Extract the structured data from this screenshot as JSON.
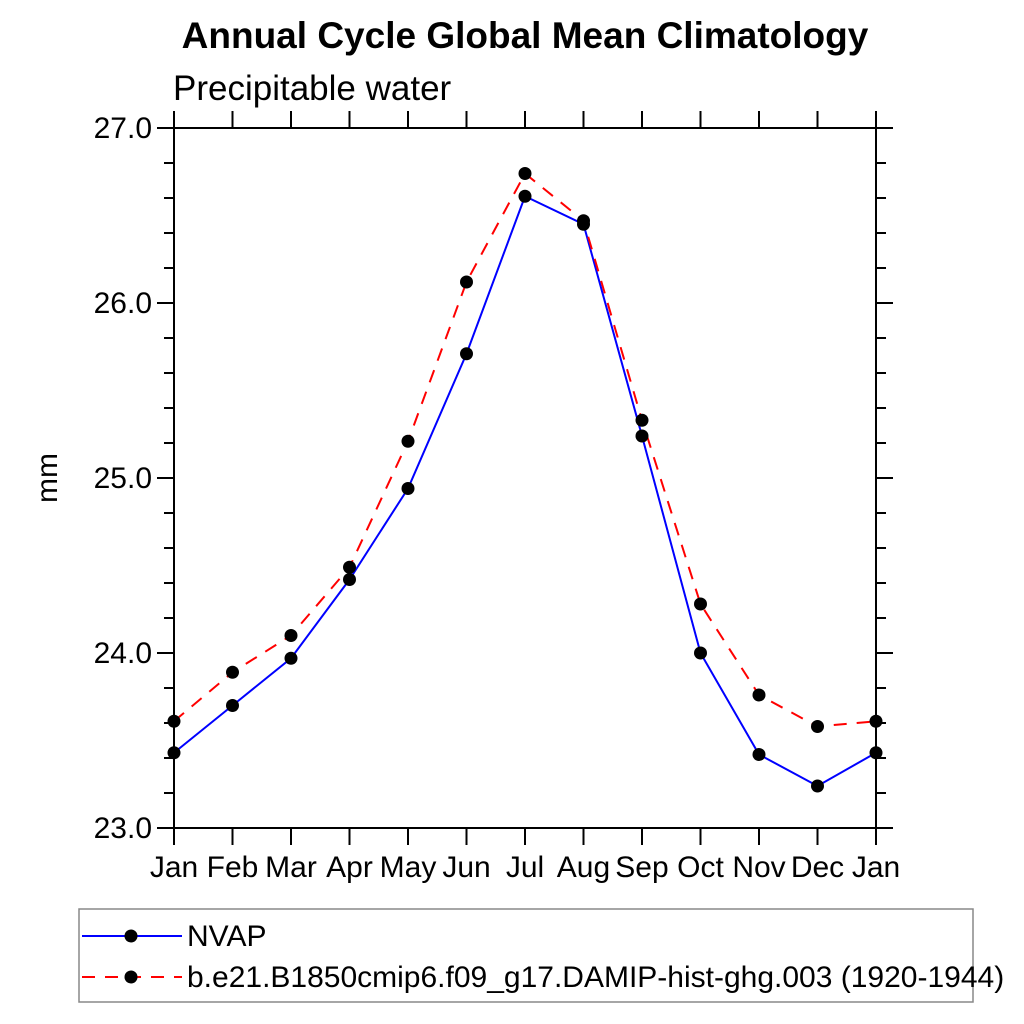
{
  "title": "Annual Cycle Global Mean Climatology",
  "subtitle": "Precipitable water",
  "y_axis_label": "mm",
  "chart_data": {
    "type": "line",
    "categories": [
      "Jan",
      "Feb",
      "Mar",
      "Apr",
      "May",
      "Jun",
      "Jul",
      "Aug",
      "Sep",
      "Oct",
      "Nov",
      "Dec",
      "Jan"
    ],
    "series": [
      {
        "name": "NVAP",
        "color": "#0000ff",
        "line_style": "solid",
        "marker": "circle",
        "marker_color": "#000000",
        "values": [
          23.43,
          23.7,
          23.97,
          24.42,
          24.94,
          25.71,
          26.61,
          26.45,
          25.24,
          24.0,
          23.42,
          23.24,
          23.43
        ]
      },
      {
        "name": "b.e21.B1850cmip6.f09_g17.DAMIP-hist-ghg.003 (1920-1944)",
        "color": "#ff0000",
        "line_style": "dashed",
        "marker": "circle",
        "marker_color": "#000000",
        "values": [
          23.61,
          23.89,
          24.1,
          24.49,
          25.21,
          26.12,
          26.74,
          26.47,
          25.33,
          24.28,
          23.76,
          23.58,
          23.61
        ]
      }
    ],
    "ylim": [
      23.0,
      27.0
    ],
    "ytick_major_values": [
      23.0,
      24.0,
      25.0,
      26.0,
      27.0
    ],
    "ytick_major_labels": [
      "23.0",
      "24.0",
      "25.0",
      "26.0",
      "27.0"
    ],
    "ytick_minor_step": 0.2,
    "grid": false,
    "legend_position": "bottom",
    "frame_color": "#000000",
    "legend_border_color": "#888888"
  }
}
